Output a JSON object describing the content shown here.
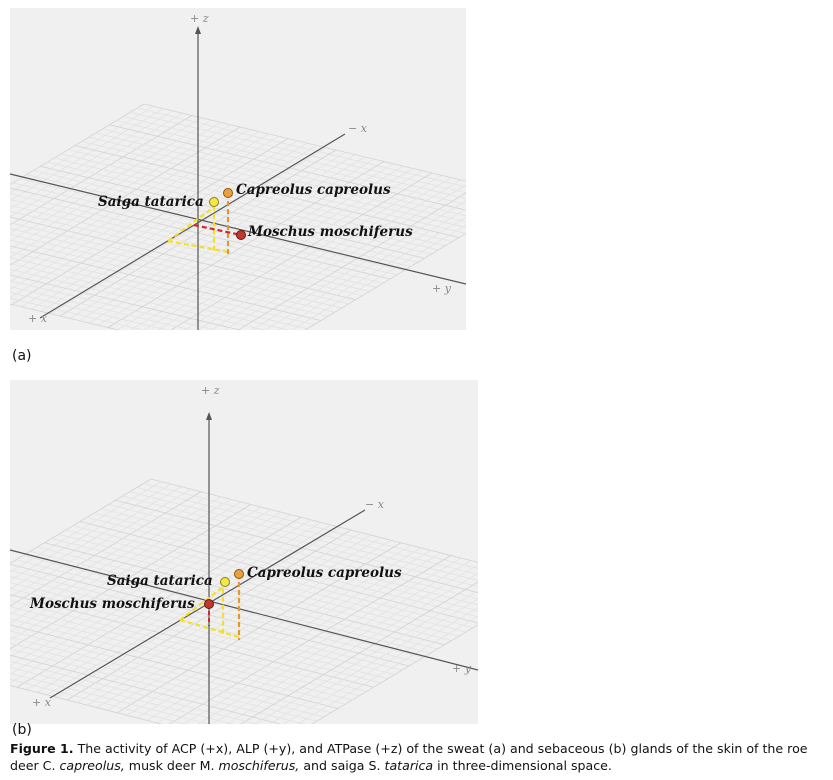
{
  "panels": [
    {
      "label": "(a)",
      "axes": {
        "z_pos": "+ z",
        "x_neg": "− x",
        "y_pos": "+ y",
        "x_pos": "+ x"
      },
      "points": [
        {
          "name": "Capreolus capreolus",
          "color": "#e8a040"
        },
        {
          "name": "Saiga tatarica",
          "color": "#f2e84a"
        },
        {
          "name": "Moschus moschiferus",
          "color": "#c0392b"
        }
      ]
    },
    {
      "label": "(b)",
      "axes": {
        "z_pos": "+ z",
        "x_neg": "− x",
        "y_pos": "+ y",
        "x_pos": "+ x"
      },
      "points": [
        {
          "name": "Capreolus capreolus",
          "color": "#e8a040"
        },
        {
          "name": "Saiga tatarica",
          "color": "#f2e84a"
        },
        {
          "name": "Moschus moschiferus",
          "color": "#c0392b"
        }
      ]
    }
  ],
  "caption": {
    "figure": "Figure 1.",
    "t1": " The activity of ACP  (+x),  ALP  (+y),  and ATPase  (+z) of the sweat  (a) and sebaceous  (b) glands of the skin of the roe deer C. ",
    "i1": "capreolus,",
    "t2": "  musk deer M. ",
    "i2": "moschiferus,",
    "t3": "  and saiga S. ",
    "i3": "tatarica",
    "t4": " in three-dimensional space."
  }
}
